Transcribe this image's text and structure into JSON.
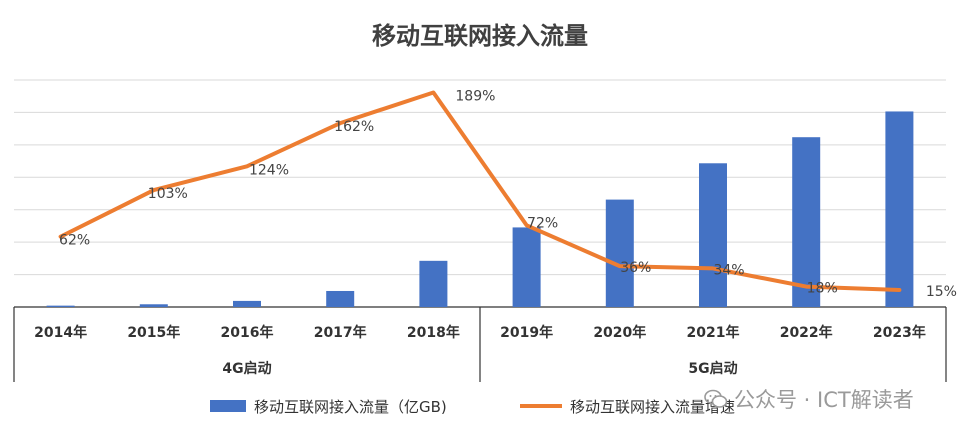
{
  "chart_data": {
    "type": "bar",
    "title": "移动互联网接入流量",
    "categories": [
      "2014年",
      "2015年",
      "2016年",
      "2017年",
      "2018年",
      "2019年",
      "2020年",
      "2021年",
      "2022年",
      "2023年"
    ],
    "groups": [
      {
        "label": "4G启动",
        "from": 0,
        "to": 4
      },
      {
        "label": "5G启动",
        "from": 5,
        "to": 9
      }
    ],
    "series": [
      {
        "name": "移动互联网接入流量（亿GB)",
        "type": "bar",
        "axis": "left",
        "color": "#4472C4",
        "values": [
          21,
          42,
          94,
          247,
          712,
          1227,
          1656,
          2216,
          2618,
          3015
        ]
      },
      {
        "name": "移动互联网接入流量增速",
        "type": "line",
        "axis": "right",
        "color": "#ED7D31",
        "values": [
          62,
          103,
          124,
          162,
          189,
          72,
          36,
          34,
          18,
          15
        ],
        "labels": [
          "62%",
          "103%",
          "124%",
          "162%",
          "189%",
          "72%",
          "36%",
          "34%",
          "18%",
          "15%"
        ]
      }
    ],
    "ylim_left": [
      0,
      3500
    ],
    "ylim_right": [
      0,
      200
    ],
    "grid": true,
    "xlabel": "",
    "ylabel": "",
    "legend_position": "bottom"
  },
  "watermark": {
    "text": "公众号 · ICT解读者",
    "icon": "wechat-icon"
  }
}
